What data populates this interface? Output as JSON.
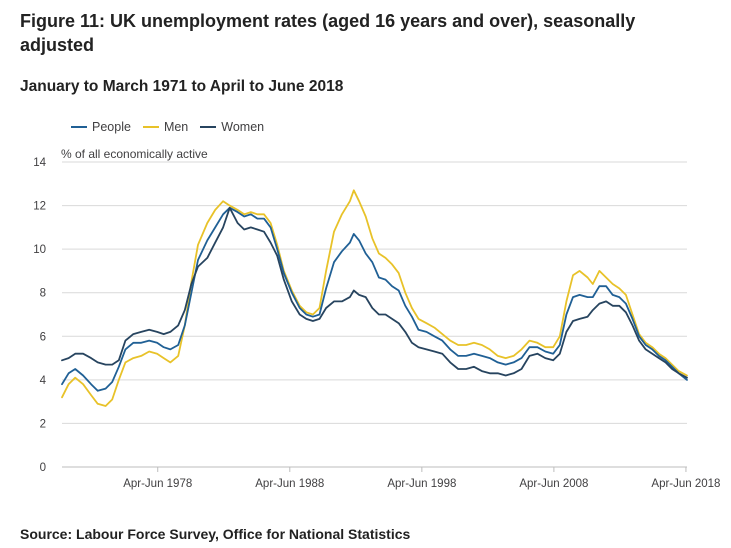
{
  "title": "Figure 11: UK unemployment rates (aged 16 years and over), seasonally adjusted",
  "subtitle": "January to March 1971 to April to June 2018",
  "source": "Source: Labour Force Survey, Office for National Statistics",
  "colors": {
    "people": "#206095",
    "men": "#e8c229",
    "women": "#27445f",
    "grid": "#d9d9d9",
    "axis": "#bdbdbd"
  },
  "chart_data": {
    "type": "line",
    "title": "Figure 11: UK unemployment rates (aged 16 years and over), seasonally adjusted",
    "ylabel": "% of all economically active",
    "xlabel": "",
    "ylim": [
      0,
      14
    ],
    "xlim": [
      1971.0,
      2018.33
    ],
    "yticks": [
      0,
      2,
      4,
      6,
      8,
      10,
      12,
      14
    ],
    "xticks": [
      {
        "value": 1978.25,
        "label": "Apr-Jun 1978"
      },
      {
        "value": 1988.25,
        "label": "Apr-Jun 1988"
      },
      {
        "value": 1998.25,
        "label": "Apr-Jun 1998"
      },
      {
        "value": 2008.25,
        "label": "Apr-Jun 2008"
      },
      {
        "value": 2018.25,
        "label": "Apr-Jun 2018"
      }
    ],
    "legend": [
      "People",
      "Men",
      "Women"
    ],
    "legend_position": "top-left",
    "series": [
      {
        "name": "People",
        "key": "people",
        "points": [
          [
            1971.0,
            3.8
          ],
          [
            1971.5,
            4.3
          ],
          [
            1972.0,
            4.5
          ],
          [
            1972.6,
            4.2
          ],
          [
            1973.2,
            3.8
          ],
          [
            1973.7,
            3.5
          ],
          [
            1974.3,
            3.6
          ],
          [
            1974.8,
            3.9
          ],
          [
            1975.3,
            4.6
          ],
          [
            1975.8,
            5.4
          ],
          [
            1976.4,
            5.7
          ],
          [
            1977.0,
            5.7
          ],
          [
            1977.6,
            5.8
          ],
          [
            1978.2,
            5.7
          ],
          [
            1978.7,
            5.5
          ],
          [
            1979.2,
            5.4
          ],
          [
            1979.8,
            5.6
          ],
          [
            1980.3,
            6.5
          ],
          [
            1980.8,
            8.0
          ],
          [
            1981.3,
            9.5
          ],
          [
            1982.0,
            10.4
          ],
          [
            1982.6,
            11.0
          ],
          [
            1983.2,
            11.6
          ],
          [
            1983.7,
            11.9
          ],
          [
            1984.3,
            11.7
          ],
          [
            1984.8,
            11.5
          ],
          [
            1985.3,
            11.6
          ],
          [
            1985.8,
            11.4
          ],
          [
            1986.3,
            11.4
          ],
          [
            1986.8,
            11.0
          ],
          [
            1987.3,
            10.0
          ],
          [
            1987.8,
            8.9
          ],
          [
            1988.4,
            8.0
          ],
          [
            1989.0,
            7.3
          ],
          [
            1989.5,
            7.0
          ],
          [
            1990.0,
            6.9
          ],
          [
            1990.5,
            7.0
          ],
          [
            1991.0,
            8.2
          ],
          [
            1991.6,
            9.4
          ],
          [
            1992.2,
            9.9
          ],
          [
            1992.8,
            10.3
          ],
          [
            1993.1,
            10.7
          ],
          [
            1993.5,
            10.4
          ],
          [
            1994.0,
            9.8
          ],
          [
            1994.5,
            9.4
          ],
          [
            1995.0,
            8.7
          ],
          [
            1995.5,
            8.6
          ],
          [
            1996.0,
            8.3
          ],
          [
            1996.5,
            8.1
          ],
          [
            1997.0,
            7.4
          ],
          [
            1997.5,
            6.9
          ],
          [
            1998.0,
            6.3
          ],
          [
            1998.6,
            6.2
          ],
          [
            1999.2,
            6.0
          ],
          [
            1999.8,
            5.8
          ],
          [
            2000.4,
            5.4
          ],
          [
            2001.0,
            5.1
          ],
          [
            2001.6,
            5.1
          ],
          [
            2002.2,
            5.2
          ],
          [
            2002.8,
            5.1
          ],
          [
            2003.4,
            5.0
          ],
          [
            2004.0,
            4.8
          ],
          [
            2004.6,
            4.7
          ],
          [
            2005.2,
            4.8
          ],
          [
            2005.8,
            5.0
          ],
          [
            2006.4,
            5.5
          ],
          [
            2007.0,
            5.5
          ],
          [
            2007.6,
            5.3
          ],
          [
            2008.2,
            5.2
          ],
          [
            2008.7,
            5.6
          ],
          [
            2009.2,
            7.0
          ],
          [
            2009.7,
            7.8
          ],
          [
            2010.2,
            7.9
          ],
          [
            2010.8,
            7.8
          ],
          [
            2011.2,
            7.8
          ],
          [
            2011.7,
            8.3
          ],
          [
            2012.2,
            8.3
          ],
          [
            2012.7,
            7.9
          ],
          [
            2013.2,
            7.8
          ],
          [
            2013.7,
            7.5
          ],
          [
            2014.2,
            6.8
          ],
          [
            2014.7,
            6.0
          ],
          [
            2015.2,
            5.6
          ],
          [
            2015.7,
            5.4
          ],
          [
            2016.2,
            5.1
          ],
          [
            2016.7,
            4.9
          ],
          [
            2017.2,
            4.6
          ],
          [
            2017.7,
            4.3
          ],
          [
            2018.33,
            4.0
          ]
        ]
      },
      {
        "name": "Men",
        "key": "men",
        "points": [
          [
            1971.0,
            3.2
          ],
          [
            1971.5,
            3.8
          ],
          [
            1972.0,
            4.1
          ],
          [
            1972.6,
            3.8
          ],
          [
            1973.2,
            3.3
          ],
          [
            1973.7,
            2.9
          ],
          [
            1974.3,
            2.8
          ],
          [
            1974.8,
            3.1
          ],
          [
            1975.3,
            4.0
          ],
          [
            1975.8,
            4.8
          ],
          [
            1976.4,
            5.0
          ],
          [
            1977.0,
            5.1
          ],
          [
            1977.6,
            5.3
          ],
          [
            1978.2,
            5.2
          ],
          [
            1978.7,
            5.0
          ],
          [
            1979.2,
            4.8
          ],
          [
            1979.8,
            5.1
          ],
          [
            1980.3,
            6.5
          ],
          [
            1980.8,
            8.5
          ],
          [
            1981.3,
            10.2
          ],
          [
            1982.0,
            11.2
          ],
          [
            1982.6,
            11.8
          ],
          [
            1983.2,
            12.2
          ],
          [
            1983.7,
            12.0
          ],
          [
            1984.3,
            11.8
          ],
          [
            1984.8,
            11.6
          ],
          [
            1985.3,
            11.7
          ],
          [
            1985.8,
            11.6
          ],
          [
            1986.3,
            11.6
          ],
          [
            1986.8,
            11.2
          ],
          [
            1987.3,
            10.2
          ],
          [
            1987.8,
            9.0
          ],
          [
            1988.4,
            8.1
          ],
          [
            1989.0,
            7.4
          ],
          [
            1989.5,
            7.1
          ],
          [
            1990.0,
            7.0
          ],
          [
            1990.5,
            7.3
          ],
          [
            1991.0,
            9.0
          ],
          [
            1991.6,
            10.8
          ],
          [
            1992.2,
            11.6
          ],
          [
            1992.8,
            12.2
          ],
          [
            1993.1,
            12.7
          ],
          [
            1993.5,
            12.2
          ],
          [
            1994.0,
            11.5
          ],
          [
            1994.5,
            10.5
          ],
          [
            1995.0,
            9.8
          ],
          [
            1995.5,
            9.6
          ],
          [
            1996.0,
            9.3
          ],
          [
            1996.5,
            8.9
          ],
          [
            1997.0,
            8.0
          ],
          [
            1997.5,
            7.3
          ],
          [
            1998.0,
            6.8
          ],
          [
            1998.6,
            6.6
          ],
          [
            1999.2,
            6.4
          ],
          [
            1999.8,
            6.1
          ],
          [
            2000.4,
            5.8
          ],
          [
            2001.0,
            5.6
          ],
          [
            2001.6,
            5.6
          ],
          [
            2002.2,
            5.7
          ],
          [
            2002.8,
            5.6
          ],
          [
            2003.4,
            5.4
          ],
          [
            2004.0,
            5.1
          ],
          [
            2004.6,
            5.0
          ],
          [
            2005.2,
            5.1
          ],
          [
            2005.8,
            5.4
          ],
          [
            2006.4,
            5.8
          ],
          [
            2007.0,
            5.7
          ],
          [
            2007.6,
            5.5
          ],
          [
            2008.2,
            5.5
          ],
          [
            2008.7,
            6.0
          ],
          [
            2009.2,
            7.6
          ],
          [
            2009.7,
            8.8
          ],
          [
            2010.2,
            9.0
          ],
          [
            2010.8,
            8.7
          ],
          [
            2011.2,
            8.4
          ],
          [
            2011.7,
            9.0
          ],
          [
            2012.2,
            8.7
          ],
          [
            2012.7,
            8.4
          ],
          [
            2013.2,
            8.2
          ],
          [
            2013.7,
            7.9
          ],
          [
            2014.2,
            7.0
          ],
          [
            2014.7,
            6.1
          ],
          [
            2015.2,
            5.7
          ],
          [
            2015.7,
            5.5
          ],
          [
            2016.2,
            5.2
          ],
          [
            2016.7,
            5.0
          ],
          [
            2017.2,
            4.7
          ],
          [
            2017.7,
            4.4
          ],
          [
            2018.33,
            4.2
          ]
        ]
      },
      {
        "name": "Women",
        "key": "women",
        "points": [
          [
            1971.0,
            4.9
          ],
          [
            1971.5,
            5.0
          ],
          [
            1972.0,
            5.2
          ],
          [
            1972.6,
            5.2
          ],
          [
            1973.2,
            5.0
          ],
          [
            1973.7,
            4.8
          ],
          [
            1974.3,
            4.7
          ],
          [
            1974.8,
            4.7
          ],
          [
            1975.3,
            4.9
          ],
          [
            1975.8,
            5.8
          ],
          [
            1976.4,
            6.1
          ],
          [
            1977.0,
            6.2
          ],
          [
            1977.6,
            6.3
          ],
          [
            1978.2,
            6.2
          ],
          [
            1978.7,
            6.1
          ],
          [
            1979.2,
            6.2
          ],
          [
            1979.8,
            6.5
          ],
          [
            1980.3,
            7.2
          ],
          [
            1980.8,
            8.4
          ],
          [
            1981.3,
            9.2
          ],
          [
            1982.0,
            9.6
          ],
          [
            1982.6,
            10.3
          ],
          [
            1983.2,
            11.0
          ],
          [
            1983.7,
            11.9
          ],
          [
            1984.3,
            11.2
          ],
          [
            1984.8,
            10.9
          ],
          [
            1985.3,
            11.0
          ],
          [
            1985.8,
            10.9
          ],
          [
            1986.3,
            10.8
          ],
          [
            1986.8,
            10.3
          ],
          [
            1987.3,
            9.7
          ],
          [
            1987.8,
            8.6
          ],
          [
            1988.4,
            7.6
          ],
          [
            1989.0,
            7.0
          ],
          [
            1989.5,
            6.8
          ],
          [
            1990.0,
            6.7
          ],
          [
            1990.5,
            6.8
          ],
          [
            1991.0,
            7.3
          ],
          [
            1991.6,
            7.6
          ],
          [
            1992.2,
            7.6
          ],
          [
            1992.8,
            7.8
          ],
          [
            1993.1,
            8.1
          ],
          [
            1993.5,
            7.9
          ],
          [
            1994.0,
            7.8
          ],
          [
            1994.5,
            7.3
          ],
          [
            1995.0,
            7.0
          ],
          [
            1995.5,
            7.0
          ],
          [
            1996.0,
            6.8
          ],
          [
            1996.5,
            6.6
          ],
          [
            1997.0,
            6.2
          ],
          [
            1997.5,
            5.7
          ],
          [
            1998.0,
            5.5
          ],
          [
            1998.6,
            5.4
          ],
          [
            1999.2,
            5.3
          ],
          [
            1999.8,
            5.2
          ],
          [
            2000.4,
            4.8
          ],
          [
            2001.0,
            4.5
          ],
          [
            2001.6,
            4.5
          ],
          [
            2002.2,
            4.6
          ],
          [
            2002.8,
            4.4
          ],
          [
            2003.4,
            4.3
          ],
          [
            2004.0,
            4.3
          ],
          [
            2004.6,
            4.2
          ],
          [
            2005.2,
            4.3
          ],
          [
            2005.8,
            4.5
          ],
          [
            2006.4,
            5.1
          ],
          [
            2007.0,
            5.2
          ],
          [
            2007.6,
            5.0
          ],
          [
            2008.2,
            4.9
          ],
          [
            2008.7,
            5.2
          ],
          [
            2009.2,
            6.2
          ],
          [
            2009.7,
            6.7
          ],
          [
            2010.2,
            6.8
          ],
          [
            2010.8,
            6.9
          ],
          [
            2011.2,
            7.2
          ],
          [
            2011.7,
            7.5
          ],
          [
            2012.2,
            7.6
          ],
          [
            2012.7,
            7.4
          ],
          [
            2013.2,
            7.4
          ],
          [
            2013.7,
            7.1
          ],
          [
            2014.2,
            6.5
          ],
          [
            2014.7,
            5.8
          ],
          [
            2015.2,
            5.4
          ],
          [
            2015.7,
            5.2
          ],
          [
            2016.2,
            5.0
          ],
          [
            2016.7,
            4.8
          ],
          [
            2017.2,
            4.5
          ],
          [
            2017.7,
            4.3
          ],
          [
            2018.33,
            4.1
          ]
        ]
      }
    ]
  }
}
